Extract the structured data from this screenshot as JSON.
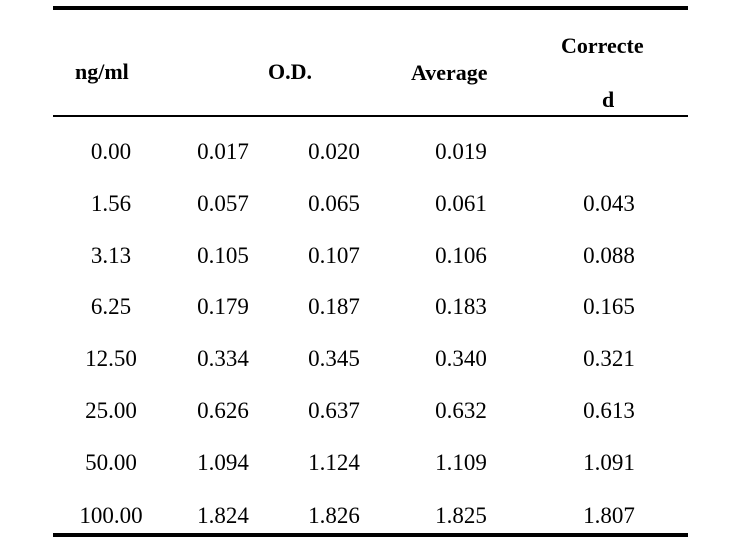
{
  "table": {
    "headers": {
      "concentration": "ng/ml",
      "od": "O.D.",
      "average": "Average",
      "corrected_line1": "Correcte",
      "corrected_line2": "d"
    },
    "rows": [
      {
        "conc": "0.00",
        "od1": "0.017",
        "od2": "0.020",
        "avg": "0.019",
        "corrected": ""
      },
      {
        "conc": "1.56",
        "od1": "0.057",
        "od2": "0.065",
        "avg": "0.061",
        "corrected": "0.043"
      },
      {
        "conc": "3.13",
        "od1": "0.105",
        "od2": "0.107",
        "avg": "0.106",
        "corrected": "0.088"
      },
      {
        "conc": "6.25",
        "od1": "0.179",
        "od2": "0.187",
        "avg": "0.183",
        "corrected": "0.165"
      },
      {
        "conc": "12.50",
        "od1": "0.334",
        "od2": "0.345",
        "avg": "0.340",
        "corrected": "0.321"
      },
      {
        "conc": "25.00",
        "od1": "0.626",
        "od2": "0.637",
        "avg": "0.632",
        "corrected": "0.613"
      },
      {
        "conc": "50.00",
        "od1": "1.094",
        "od2": "1.124",
        "avg": "1.109",
        "corrected": "1.091"
      },
      {
        "conc": "100.00",
        "od1": "1.824",
        "od2": "1.826",
        "avg": "1.825",
        "corrected": "1.807"
      }
    ]
  }
}
